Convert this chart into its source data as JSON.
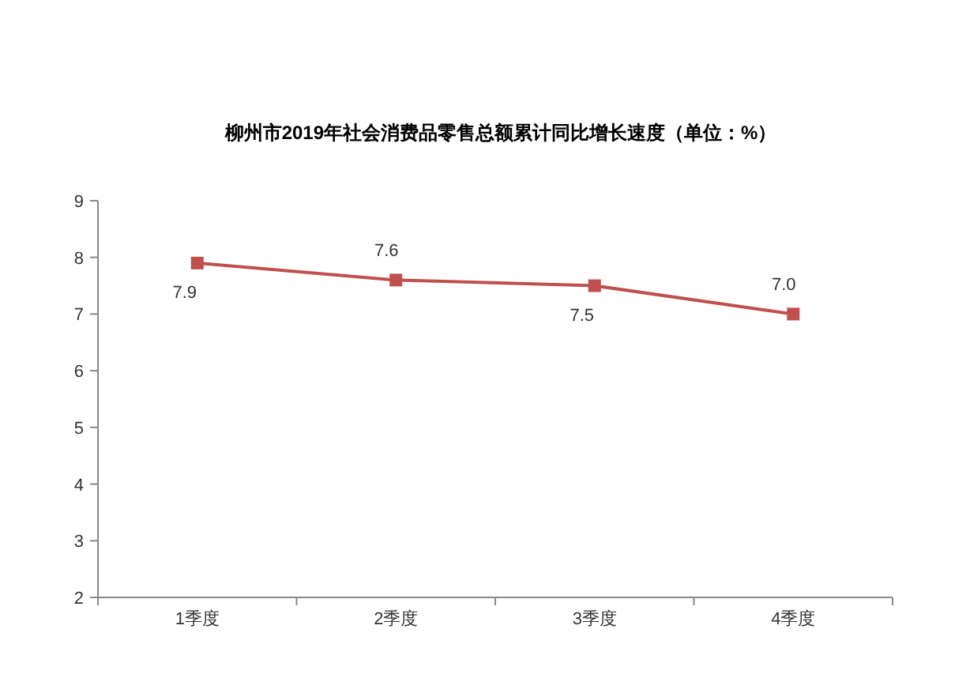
{
  "chart_data": {
    "type": "line",
    "title": "柳州市2019年社会消费品零售总额累计同比增长速度（单位：%）",
    "categories": [
      "1季度",
      "2季度",
      "3季度",
      "4季度"
    ],
    "series": [
      {
        "color": "#c0504d",
        "values": [
          7.9,
          7.6,
          7.5,
          7.0
        ],
        "value_labels": [
          "7.9",
          "7.6",
          "7.5",
          "7.0"
        ]
      }
    ],
    "ylim": [
      2,
      9
    ],
    "yticks": [
      2,
      3,
      4,
      5,
      6,
      7,
      8,
      9
    ],
    "marker": "square",
    "line_style": "solid",
    "grid": false
  }
}
